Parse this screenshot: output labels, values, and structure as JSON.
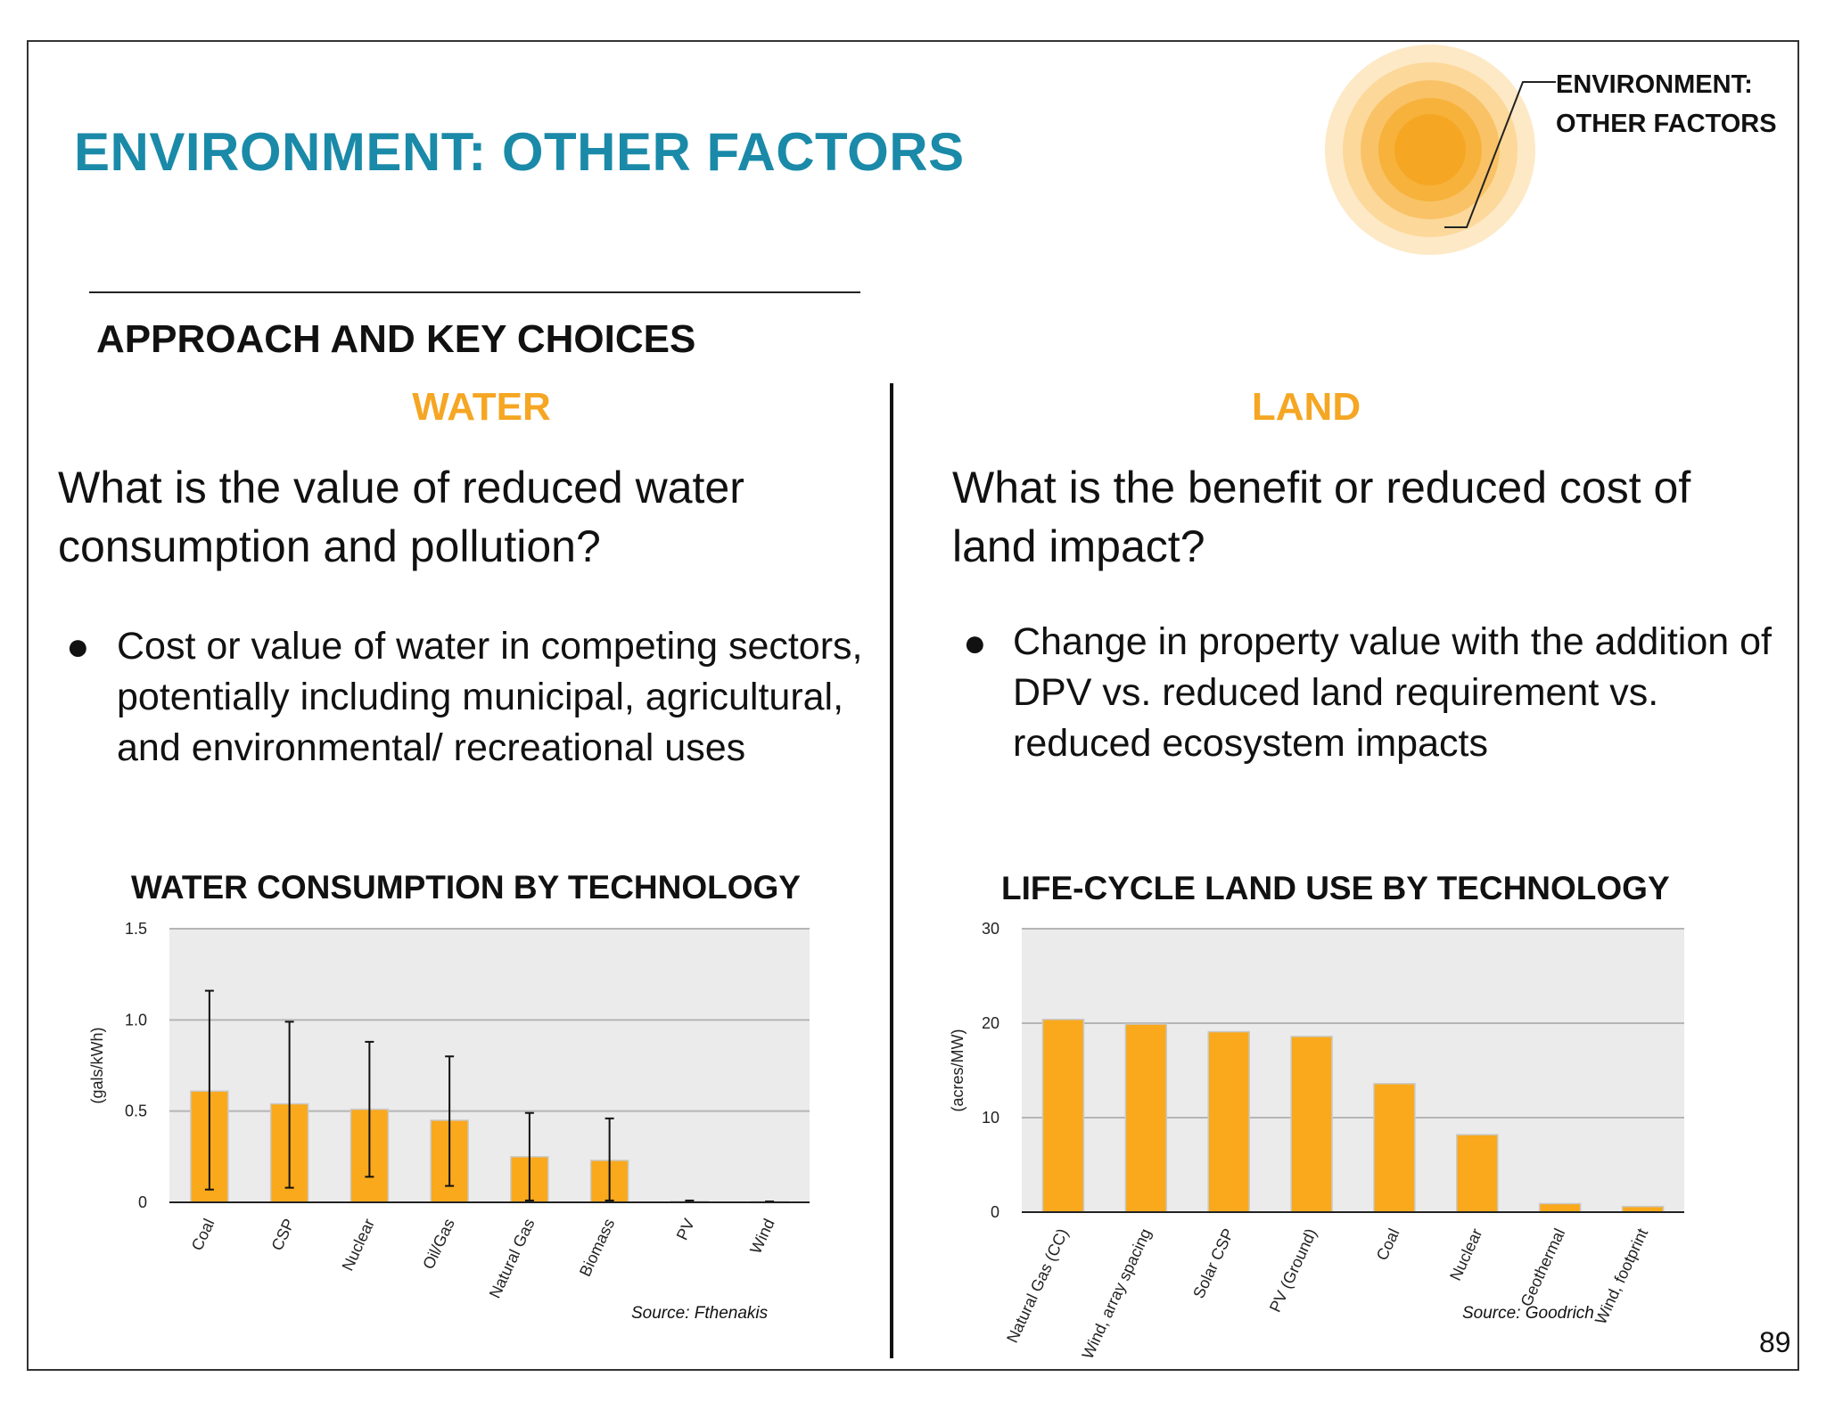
{
  "header": {
    "title": "ENVIRONMENT: OTHER FACTORS",
    "corner_label_line1": "ENVIRONMENT:",
    "corner_label_line2": "OTHER FACTORS"
  },
  "section": {
    "heading": "APPROACH AND KEY CHOICES"
  },
  "water": {
    "heading": "WATER",
    "question": "What is the value of reduced water consumption and pollution?",
    "bullet": "Cost or value of water in competing sectors, potentially including municipal, agricultural, and environmental/ recreational uses"
  },
  "land": {
    "heading": "LAND",
    "question": "What is the benefit or reduced cost of land impact?",
    "bullet": "Change in property value with the addition of DPV vs. reduced land requirement vs. reduced ecosystem impacts"
  },
  "page_number": "89",
  "colors": {
    "title_teal": "#1a8aa8",
    "accent_orange": "#f5a623",
    "bar_fill": "#f9a91b",
    "plot_bg": "#ebebeb"
  },
  "chart_data": [
    {
      "type": "bar",
      "title": "WATER CONSUMPTION BY TECHNOLOGY",
      "ylabel": "(gals/kWh)",
      "xlabel": "",
      "categories": [
        "Coal",
        "CSP",
        "Nuclear",
        "Oil/Gas",
        "Natural Gas",
        "Biomass",
        "PV",
        "Wind"
      ],
      "values": [
        0.61,
        0.54,
        0.51,
        0.45,
        0.25,
        0.23,
        0.005,
        0.003
      ],
      "error_low": [
        0.07,
        0.08,
        0.14,
        0.09,
        0.01,
        0.01,
        0.0,
        0.0
      ],
      "error_high": [
        1.16,
        0.99,
        0.88,
        0.8,
        0.49,
        0.46,
        0.01,
        0.005
      ],
      "ylim": [
        0,
        1.5
      ],
      "yticks": [
        0,
        0.5,
        1.0,
        1.5
      ],
      "ytick_labels": [
        "0",
        "0.5",
        "1.0",
        "1.5"
      ],
      "grid": true,
      "source": "Source: Fthenakis"
    },
    {
      "type": "bar",
      "title": "LIFE-CYCLE LAND USE BY TECHNOLOGY",
      "ylabel": "(acres/MW)",
      "xlabel": "",
      "categories": [
        "Natural Gas (CC)",
        "Wind, array spacing",
        "Solar CSP",
        "PV (Ground)",
        "Coal",
        "Nuclear",
        "Geothermal",
        "Wind, footprint"
      ],
      "values": [
        20.4,
        19.9,
        19.1,
        18.6,
        13.6,
        8.2,
        0.9,
        0.6
      ],
      "ylim": [
        0,
        30
      ],
      "yticks": [
        0,
        10,
        20,
        30
      ],
      "ytick_labels": [
        "0",
        "10",
        "20",
        "30"
      ],
      "grid": true,
      "source": "Source: Goodrich"
    }
  ]
}
